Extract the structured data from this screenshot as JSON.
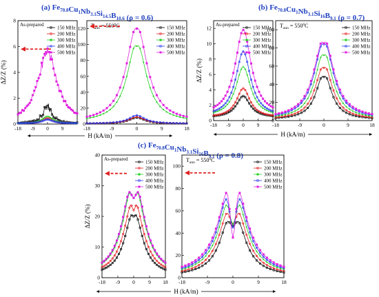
{
  "chart_data": {
    "type": "line",
    "colors": {
      "150 MHz": "#000000",
      "200 MHz": "#e31a1c",
      "300 MHz": "#1fcf1f",
      "400 MHz": "#2233ee",
      "500 MHz": "#e020e0",
      "arrow": "#e02020",
      "title": "#1f3fbf"
    },
    "freq_labels": [
      "150 MHz",
      "200 MHz",
      "300 MHz",
      "400 MHz",
      "500 MHz"
    ],
    "panels": [
      {
        "id": "a",
        "label": "(a)",
        "composition": [
          [
            "Fe",
            ""
          ],
          [
            "70.8",
            "sub"
          ],
          [
            "Cu",
            ""
          ],
          [
            "1",
            "sub"
          ],
          [
            "Nb",
            ""
          ],
          [
            "3.1",
            "sub"
          ],
          [
            "Si",
            ""
          ],
          [
            "14.5",
            "sub"
          ],
          [
            "B",
            ""
          ],
          [
            "10.6",
            "sub"
          ]
        ],
        "rho": "(ρ = 0.6)",
        "subplots": [
          {
            "id": "a-asprep",
            "ylabel": "ΔZ/Z (%)",
            "xlabel": "",
            "yticks": [
              0,
              2,
              4,
              6,
              8
            ],
            "ylim": [
              0,
              8
            ],
            "xticks": [
              -18,
              -9,
              0,
              9,
              18
            ],
            "xticklabels": [
              "-18",
              "-9",
              "0",
              "9"
            ],
            "xlim": [
              -18,
              18
            ],
            "legend_title": "As-prepared",
            "annotation": "",
            "arrow_y": 5.8,
            "peaks": [
              1.3,
              0.45,
              0.6,
              0.35,
              5.6
            ],
            "floors": [
              0.05,
              0.05,
              0.05,
              0.05,
              0.05
            ],
            "widths": [
              3.5,
              4,
              4,
              4,
              7
            ],
            "dip": [
              0,
              0,
              0,
              0,
              0
            ],
            "dipw": [
              1,
              1,
              1,
              1,
              1
            ],
            "noise": [
              0.35,
              0,
              0,
              0,
              0.4
            ]
          },
          {
            "id": "a-ann",
            "ylabel": "",
            "xlabel": "",
            "yticks": [
              0,
              20,
              40,
              60,
              80,
              100,
              120
            ],
            "ylim": [
              0,
              130
            ],
            "xticks": [
              -18,
              -9,
              0,
              9,
              18
            ],
            "xticklabels": [
              "-18",
              "-9",
              "0",
              "9",
              "18"
            ],
            "xlim": [
              -18,
              18
            ],
            "legend_title": "",
            "annotation": "T ann = 550°C",
            "arrow_y": 123,
            "peaks": [
              8,
              9,
              103,
              11,
              124
            ],
            "floors": [
              0.5,
              0.5,
              2,
              0.5,
              2
            ],
            "widths": [
              3.5,
              3.5,
              4.2,
              3.5,
              4.5
            ],
            "dip": [
              0,
              0,
              5,
              0,
              4
            ],
            "dipw": [
              1,
              1,
              0.5,
              1,
              0.5
            ],
            "noise": [
              0,
              0,
              0,
              0,
              0
            ]
          }
        ]
      },
      {
        "id": "b",
        "label": "(b)",
        "composition": [
          [
            "Fe",
            ""
          ],
          [
            "70.8",
            "sub"
          ],
          [
            "Cu",
            ""
          ],
          [
            "1",
            "sub"
          ],
          [
            "Nb",
            ""
          ],
          [
            "3.1",
            "sub"
          ],
          [
            "Si",
            ""
          ],
          [
            "16",
            "sub"
          ],
          [
            "B",
            ""
          ],
          [
            "9.1",
            "sub"
          ]
        ],
        "rho": "(ρ = 0.7)",
        "subplots": [
          {
            "id": "b-asprep",
            "ylabel": "ΔZ/Z (%)",
            "xlabel": "",
            "yticks": [
              0,
              2,
              4,
              6,
              8,
              10,
              12
            ],
            "ylim": [
              0,
              13
            ],
            "xticks": [
              -18,
              -9,
              0,
              9,
              18
            ],
            "xticklabels": [
              "-18",
              "-9",
              "0",
              "9"
            ],
            "xlim": [
              -18,
              18
            ],
            "legend_title": "As-prepared",
            "annotation": "",
            "arrow_y": null,
            "peaks": [
              3.2,
              4.2,
              7,
              9,
              11.8
            ],
            "floors": [
              0.4,
              0.4,
              0.5,
              0.5,
              0.6
            ],
            "widths": [
              5,
              5,
              5.5,
              5.5,
              6
            ],
            "dip": [
              0,
              0,
              0,
              0,
              0
            ],
            "dipw": [
              1,
              1,
              1,
              1,
              1
            ],
            "noise": [
              0,
              0,
              0,
              0,
              0
            ]
          },
          {
            "id": "b-ann",
            "ylabel": "",
            "xlabel": "H (kA/m)",
            "yticks": [
              0,
              20,
              40,
              60,
              80,
              100
            ],
            "ylim": [
              0,
              110
            ],
            "xticks": [
              -18,
              -9,
              0,
              9,
              18
            ],
            "xticklabels": [
              "-18",
              "-9",
              "0",
              "9",
              "18"
            ],
            "xlim": [
              -18,
              18
            ],
            "legend_title": "",
            "annotation": "T ann = 550°C",
            "arrow_y": null,
            "peaks": [
              52,
              62,
              76,
              88,
              91
            ],
            "floors": [
              1,
              1,
              1.5,
              1.5,
              2
            ],
            "widths": [
              3.5,
              3.8,
              4,
              4.3,
              4.5
            ],
            "dip": [
              4,
              4,
              4,
              4,
              6
            ],
            "dipw": [
              0.5,
              0.5,
              0.5,
              0.5,
              0.5
            ],
            "noise": [
              0,
              0,
              0,
              0,
              0
            ]
          }
        ]
      },
      {
        "id": "c",
        "label": "(c)",
        "composition": [
          [
            "Fe",
            ""
          ],
          [
            "70.8",
            "sub"
          ],
          [
            "Cu",
            ""
          ],
          [
            "1",
            "sub"
          ],
          [
            "Nb",
            ""
          ],
          [
            "3.1",
            "sub"
          ],
          [
            "Si",
            ""
          ],
          [
            "16",
            "sub"
          ],
          [
            "B",
            ""
          ],
          [
            "9.1",
            "sub"
          ]
        ],
        "rho": "(ρ = 0.8)",
        "subplots": [
          {
            "id": "c-asprep",
            "ylabel": "ΔZ/Z (%)",
            "xlabel": "",
            "yticks": [
              0,
              10,
              20,
              30,
              40
            ],
            "ylim": [
              0,
              40
            ],
            "xticks": [
              -18,
              -9,
              0,
              9,
              18
            ],
            "xticklabels": [
              "-18",
              "-9",
              "0",
              "9",
              "18"
            ],
            "xlim": [
              -18,
              18
            ],
            "legend_title": "As-prepared",
            "annotation": "",
            "arrow_y": 34,
            "peaks": [
              22,
              26,
              32,
              34,
              34
            ],
            "floors": [
              0.5,
              0.5,
              0.5,
              0.5,
              0.5
            ],
            "widths": [
              6,
              6.5,
              7,
              7,
              7
            ],
            "dip": [
              2,
              4,
              6,
              8,
              8
            ],
            "dipw": [
              0.9,
              0.9,
              1.3,
              1.6,
              1.6
            ],
            "noise": [
              0,
              0,
              0,
              0,
              0
            ]
          },
          {
            "id": "c-ann",
            "ylabel": "",
            "xlabel": "H (kA/m)",
            "yticks": [
              0,
              20,
              40,
              60,
              80,
              100
            ],
            "ylim": [
              0,
              110
            ],
            "xticks": [
              -18,
              -9,
              0,
              9,
              18
            ],
            "xticklabels": [
              "-18",
              "-9",
              "0",
              "9",
              "18"
            ],
            "xlim": [
              -18,
              18
            ],
            "legend_title": "",
            "annotation": "T ann = 550°C",
            "arrow_y": 94,
            "peaks": [
              66,
              76,
              86,
              93,
              94
            ],
            "floors": [
              1,
              1,
              1.5,
              1.5,
              2
            ],
            "widths": [
              4.5,
              4.8,
              5,
              5.2,
              5.5
            ],
            "dip": [
              20,
              28,
              38,
              48,
              58
            ],
            "dipw": [
              1.2,
              1.2,
              1.2,
              1.2,
              1.0
            ],
            "noise": [
              0,
              0,
              0,
              0,
              0
            ]
          }
        ]
      }
    ],
    "shared_xlabel": "H (kA/m)"
  }
}
